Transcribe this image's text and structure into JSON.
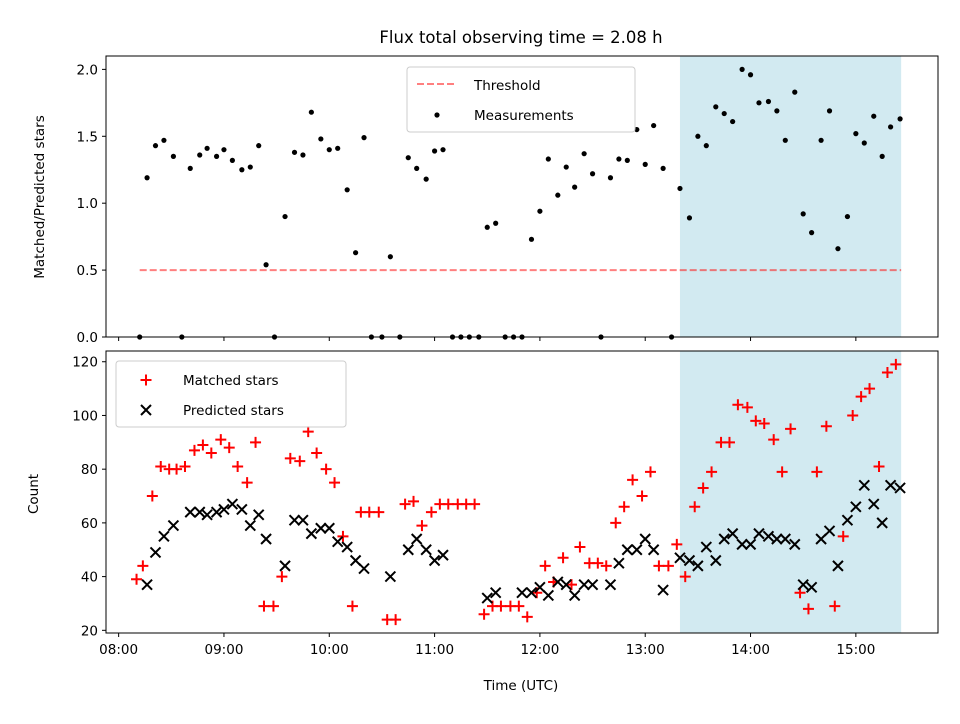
{
  "title": "Flux total observing time = 2.08 h",
  "x_axis": {
    "label": "Time (UTC)",
    "unit": "hours since midnight UTC",
    "range": [
      7.88,
      15.78
    ],
    "ticks": [
      8,
      9,
      10,
      11,
      12,
      13,
      14,
      15
    ],
    "tick_labels": [
      "08:00",
      "09:00",
      "10:00",
      "11:00",
      "12:00",
      "13:00",
      "14:00",
      "15:00"
    ]
  },
  "shaded_interval": {
    "start": 13.33,
    "end": 15.43,
    "color": "#add8e6"
  },
  "chart_data": [
    {
      "type": "scatter",
      "ylabel": "Matched/Predicted stars",
      "ylim": [
        0.0,
        2.1
      ],
      "yticks": [
        0.0,
        0.5,
        1.0,
        1.5,
        2.0
      ],
      "ytick_labels": [
        "0.0",
        "0.5",
        "1.0",
        "1.5",
        "2.0"
      ],
      "legend": {
        "placement": "top-center",
        "entries": [
          "Threshold",
          "Measurements"
        ]
      },
      "threshold": {
        "name": "Threshold",
        "value": 0.5,
        "x_range": [
          8.2,
          15.43
        ],
        "color": "#ff0000",
        "alpha": 0.5,
        "style": "dashed"
      },
      "series": [
        {
          "name": "Measurements",
          "color": "#000000",
          "marker": "dot",
          "points": [
            [
              8.2,
              0.0
            ],
            [
              8.27,
              1.19
            ],
            [
              8.35,
              1.43
            ],
            [
              8.43,
              1.47
            ],
            [
              8.52,
              1.35
            ],
            [
              8.6,
              0.0
            ],
            [
              8.68,
              1.26
            ],
            [
              8.77,
              1.36
            ],
            [
              8.84,
              1.41
            ],
            [
              8.93,
              1.35
            ],
            [
              9.0,
              1.4
            ],
            [
              9.08,
              1.32
            ],
            [
              9.17,
              1.25
            ],
            [
              9.25,
              1.27
            ],
            [
              9.33,
              1.43
            ],
            [
              9.4,
              0.54
            ],
            [
              9.48,
              0.0
            ],
            [
              9.58,
              0.9
            ],
            [
              9.67,
              1.38
            ],
            [
              9.75,
              1.36
            ],
            [
              9.83,
              1.68
            ],
            [
              9.92,
              1.48
            ],
            [
              10.0,
              1.4
            ],
            [
              10.08,
              1.41
            ],
            [
              10.17,
              1.1
            ],
            [
              10.25,
              0.63
            ],
            [
              10.33,
              1.49
            ],
            [
              10.4,
              0.0
            ],
            [
              10.5,
              0.0
            ],
            [
              10.58,
              0.6
            ],
            [
              10.67,
              0.0
            ],
            [
              10.75,
              1.34
            ],
            [
              10.83,
              1.26
            ],
            [
              10.92,
              1.18
            ],
            [
              11.0,
              1.39
            ],
            [
              11.08,
              1.4
            ],
            [
              11.17,
              0.0
            ],
            [
              11.25,
              0.0
            ],
            [
              11.33,
              0.0
            ],
            [
              11.42,
              0.0
            ],
            [
              11.5,
              0.82
            ],
            [
              11.58,
              0.85
            ],
            [
              11.67,
              0.0
            ],
            [
              11.75,
              0.0
            ],
            [
              11.83,
              0.0
            ],
            [
              11.92,
              0.73
            ],
            [
              12.0,
              0.94
            ],
            [
              12.08,
              1.33
            ],
            [
              12.17,
              1.06
            ],
            [
              12.25,
              1.27
            ],
            [
              12.33,
              1.12
            ],
            [
              12.42,
              1.37
            ],
            [
              12.5,
              1.22
            ],
            [
              12.58,
              0.0
            ],
            [
              12.67,
              1.19
            ],
            [
              12.75,
              1.33
            ],
            [
              12.83,
              1.32
            ],
            [
              12.92,
              1.55
            ],
            [
              13.0,
              1.29
            ],
            [
              13.08,
              1.58
            ],
            [
              13.17,
              1.26
            ],
            [
              13.25,
              0.0
            ],
            [
              13.33,
              1.11
            ],
            [
              13.42,
              0.89
            ],
            [
              13.5,
              1.5
            ],
            [
              13.58,
              1.43
            ],
            [
              13.67,
              1.72
            ],
            [
              13.75,
              1.67
            ],
            [
              13.83,
              1.61
            ],
            [
              13.92,
              2.0
            ],
            [
              14.0,
              1.96
            ],
            [
              14.08,
              1.75
            ],
            [
              14.17,
              1.76
            ],
            [
              14.25,
              1.69
            ],
            [
              14.33,
              1.47
            ],
            [
              14.42,
              1.83
            ],
            [
              14.5,
              0.92
            ],
            [
              14.58,
              0.78
            ],
            [
              14.67,
              1.47
            ],
            [
              14.75,
              1.69
            ],
            [
              14.83,
              0.66
            ],
            [
              14.92,
              0.9
            ],
            [
              15.0,
              1.52
            ],
            [
              15.08,
              1.45
            ],
            [
              15.17,
              1.65
            ],
            [
              15.25,
              1.35
            ],
            [
              15.33,
              1.57
            ],
            [
              15.42,
              1.63
            ]
          ]
        }
      ]
    },
    {
      "type": "scatter",
      "ylabel": "Count",
      "ylim": [
        19,
        124
      ],
      "yticks": [
        20,
        40,
        60,
        80,
        100,
        120
      ],
      "ytick_labels": [
        "20",
        "40",
        "60",
        "80",
        "100",
        "120"
      ],
      "legend": {
        "placement": "top-left",
        "entries": [
          "Matched stars",
          "Predicted stars"
        ]
      },
      "series": [
        {
          "name": "Matched stars",
          "color": "#ff0000",
          "marker": "plus",
          "points": [
            [
              8.17,
              39
            ],
            [
              8.23,
              44
            ],
            [
              8.32,
              70
            ],
            [
              8.4,
              81
            ],
            [
              8.48,
              80
            ],
            [
              8.55,
              80
            ],
            [
              8.63,
              81
            ],
            [
              8.72,
              87
            ],
            [
              8.8,
              89
            ],
            [
              8.88,
              86
            ],
            [
              8.97,
              91
            ],
            [
              9.05,
              88
            ],
            [
              9.13,
              81
            ],
            [
              9.22,
              75
            ],
            [
              9.3,
              90
            ],
            [
              9.38,
              29
            ],
            [
              9.47,
              29
            ],
            [
              9.55,
              40
            ],
            [
              9.63,
              84
            ],
            [
              9.72,
              83
            ],
            [
              9.8,
              94
            ],
            [
              9.88,
              86
            ],
            [
              9.97,
              80
            ],
            [
              10.05,
              75
            ],
            [
              10.13,
              55
            ],
            [
              10.22,
              29
            ],
            [
              10.3,
              64
            ],
            [
              10.38,
              64
            ],
            [
              10.47,
              64
            ],
            [
              10.55,
              24
            ],
            [
              10.63,
              24
            ],
            [
              10.72,
              67
            ],
            [
              10.8,
              68
            ],
            [
              10.88,
              59
            ],
            [
              10.97,
              64
            ],
            [
              11.05,
              67
            ],
            [
              11.13,
              67
            ],
            [
              11.22,
              67
            ],
            [
              11.3,
              67
            ],
            [
              11.38,
              67
            ],
            [
              11.47,
              26
            ],
            [
              11.55,
              29
            ],
            [
              11.63,
              29
            ],
            [
              11.72,
              29
            ],
            [
              11.8,
              29
            ],
            [
              11.88,
              25
            ],
            [
              11.97,
              34
            ],
            [
              12.05,
              44
            ],
            [
              12.13,
              38
            ],
            [
              12.22,
              47
            ],
            [
              12.3,
              37
            ],
            [
              12.38,
              51
            ],
            [
              12.47,
              45
            ],
            [
              12.55,
              45
            ],
            [
              12.63,
              44
            ],
            [
              12.72,
              60
            ],
            [
              12.8,
              66
            ],
            [
              12.88,
              76
            ],
            [
              12.97,
              70
            ],
            [
              13.05,
              79
            ],
            [
              13.13,
              44
            ],
            [
              13.22,
              44
            ],
            [
              13.3,
              52
            ],
            [
              13.38,
              40
            ],
            [
              13.47,
              66
            ],
            [
              13.55,
              73
            ],
            [
              13.63,
              79
            ],
            [
              13.72,
              90
            ],
            [
              13.8,
              90
            ],
            [
              13.88,
              104
            ],
            [
              13.97,
              103
            ],
            [
              14.05,
              98
            ],
            [
              14.13,
              97
            ],
            [
              14.22,
              91
            ],
            [
              14.3,
              79
            ],
            [
              14.38,
              95
            ],
            [
              14.47,
              34
            ],
            [
              14.55,
              28
            ],
            [
              14.63,
              79
            ],
            [
              14.72,
              96
            ],
            [
              14.8,
              29
            ],
            [
              14.88,
              55
            ],
            [
              14.97,
              100
            ],
            [
              15.05,
              107
            ],
            [
              15.13,
              110
            ],
            [
              15.22,
              81
            ],
            [
              15.3,
              116
            ],
            [
              15.38,
              119
            ]
          ]
        },
        {
          "name": "Predicted stars",
          "color": "#000000",
          "marker": "x",
          "points": [
            [
              8.27,
              37
            ],
            [
              8.35,
              49
            ],
            [
              8.43,
              55
            ],
            [
              8.52,
              59
            ],
            [
              8.68,
              64
            ],
            [
              8.77,
              64
            ],
            [
              8.84,
              63
            ],
            [
              8.93,
              64
            ],
            [
              9.0,
              65
            ],
            [
              9.08,
              67
            ],
            [
              9.17,
              65
            ],
            [
              9.25,
              59
            ],
            [
              9.33,
              63
            ],
            [
              9.4,
              54
            ],
            [
              9.58,
              44
            ],
            [
              9.67,
              61
            ],
            [
              9.75,
              61
            ],
            [
              9.83,
              56
            ],
            [
              9.92,
              58
            ],
            [
              10.0,
              58
            ],
            [
              10.08,
              53
            ],
            [
              10.17,
              51
            ],
            [
              10.25,
              46
            ],
            [
              10.33,
              43
            ],
            [
              10.58,
              40
            ],
            [
              10.75,
              50
            ],
            [
              10.83,
              54
            ],
            [
              10.92,
              50
            ],
            [
              11.0,
              46
            ],
            [
              11.08,
              48
            ],
            [
              11.5,
              32
            ],
            [
              11.58,
              34
            ],
            [
              11.83,
              34
            ],
            [
              11.92,
              34
            ],
            [
              12.0,
              36
            ],
            [
              12.08,
              33
            ],
            [
              12.17,
              38
            ],
            [
              12.25,
              37
            ],
            [
              12.33,
              33
            ],
            [
              12.42,
              37
            ],
            [
              12.5,
              37
            ],
            [
              12.67,
              37
            ],
            [
              12.75,
              45
            ],
            [
              12.83,
              50
            ],
            [
              12.92,
              50
            ],
            [
              13.0,
              54
            ],
            [
              13.08,
              50
            ],
            [
              13.17,
              35
            ],
            [
              13.33,
              47
            ],
            [
              13.42,
              46
            ],
            [
              13.5,
              44
            ],
            [
              13.58,
              51
            ],
            [
              13.67,
              46
            ],
            [
              13.75,
              54
            ],
            [
              13.83,
              56
            ],
            [
              13.92,
              52
            ],
            [
              14.0,
              52
            ],
            [
              14.08,
              56
            ],
            [
              14.17,
              55
            ],
            [
              14.25,
              54
            ],
            [
              14.33,
              54
            ],
            [
              14.42,
              52
            ],
            [
              14.5,
              37
            ],
            [
              14.58,
              36
            ],
            [
              14.67,
              54
            ],
            [
              14.75,
              57
            ],
            [
              14.83,
              44
            ],
            [
              14.92,
              61
            ],
            [
              15.0,
              66
            ],
            [
              15.08,
              74
            ],
            [
              15.17,
              67
            ],
            [
              15.25,
              60
            ],
            [
              15.33,
              74
            ],
            [
              15.42,
              73
            ]
          ]
        }
      ]
    }
  ]
}
